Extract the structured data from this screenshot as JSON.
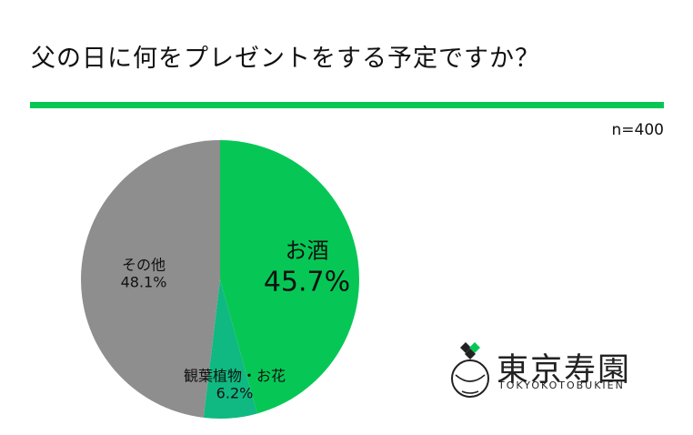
{
  "header": {
    "title": "父の日に何をプレゼントをする予定ですか？",
    "sample_size": "n=400",
    "accent_color": "#06c755"
  },
  "chart_data": {
    "type": "pie",
    "start": "12 o'clock, clockwise",
    "slices": [
      {
        "label": "お酒",
        "value": 45.7,
        "pct_text": "45.7%",
        "color": "#06c755"
      },
      {
        "label": "観葉植物・お花",
        "value": 6.2,
        "pct_text": "6.2%",
        "color": "#10b981"
      },
      {
        "label": "その他",
        "value": 48.1,
        "pct_text": "48.1%",
        "color": "#8e8e8e"
      }
    ]
  },
  "logo": {
    "name": "東京寿園",
    "romaji": "TOKYOKOTOBUKIEN"
  }
}
